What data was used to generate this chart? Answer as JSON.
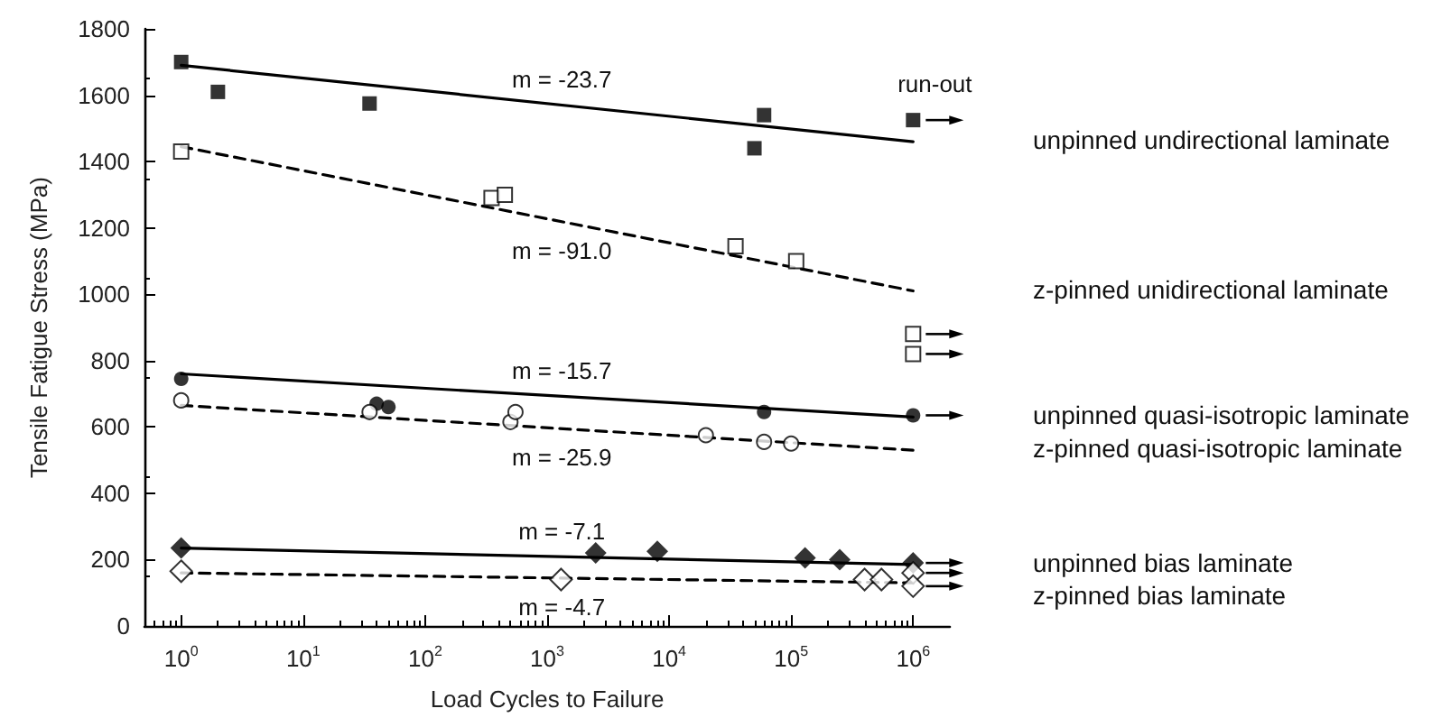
{
  "chart_data": {
    "type": "scatter",
    "xlabel": "Load Cycles to Failure",
    "ylabel": "Tensile Fatigue Stress (MPa)",
    "log": "x",
    "grid": false,
    "legend": "right",
    "xlim": [
      0.5,
      2000000
    ],
    "xticks": [
      {
        "value": 1,
        "label": "10$^{0}$"
      },
      {
        "value": 10,
        "label": "10$^{1}$"
      },
      {
        "value": 100,
        "label": "10$^{2}$"
      },
      {
        "value": 1000,
        "label": "10$^{3}$"
      },
      {
        "value": 10000,
        "label": "10$^{4}$"
      },
      {
        "value": 100000,
        "label": "10$^{5}$"
      },
      {
        "value": 1000000,
        "label": "10$^{6}$"
      }
    ],
    "ylim": [
      0,
      1800
    ],
    "yticks": [
      0,
      200,
      400,
      600,
      800,
      1000,
      1200,
      1400,
      1600,
      1800
    ],
    "series": [
      {
        "name": "unpinned undirectional laminate",
        "marker": "square",
        "color": "#000000",
        "x": [
          1,
          2,
          35,
          50000,
          60000,
          1000000
        ],
        "values": [
          1700,
          1610,
          1575,
          1440,
          1540,
          1525
        ]
      },
      {
        "type": "line",
        "marker": "none",
        "line_style": "solid",
        "color": "#000000",
        "x": [
          1,
          1000000
        ],
        "values": [
          1690,
          1460
        ]
      },
      {
        "name": "z-pinned unidirectional laminate",
        "marker": "square",
        "color": "#ffffff",
        "x": [
          1,
          350,
          450,
          35000,
          110000,
          1000000,
          1000000
        ],
        "values": [
          1430,
          1290,
          1300,
          1145,
          1100,
          880,
          820
        ]
      },
      {
        "type": "line",
        "marker": "none",
        "line_style": "dashed",
        "color": "#000000",
        "x": [
          1,
          1000000
        ],
        "values": [
          1445,
          1010
        ]
      },
      {
        "name": "unpinned quasi-isotropic laminate",
        "marker": "circle",
        "color": "#000000",
        "x": [
          1,
          40,
          50,
          60000,
          1000000
        ],
        "values": [
          745,
          670,
          660,
          645,
          635
        ]
      },
      {
        "type": "line",
        "marker": "none",
        "line_style": "solid",
        "color": "#000000",
        "x": [
          1,
          1000000
        ],
        "values": [
          760,
          630
        ]
      },
      {
        "name": "z-pinned quasi-isotropic laminate",
        "marker": "circle",
        "color": "#ffffff",
        "x": [
          1,
          35,
          500,
          550,
          20000,
          60000,
          100000
        ],
        "values": [
          680,
          645,
          615,
          645,
          575,
          555,
          550
        ]
      },
      {
        "type": "line",
        "marker": "none",
        "line_style": "dashed",
        "color": "#000000",
        "x": [
          1,
          1000000
        ],
        "values": [
          665,
          530
        ]
      },
      {
        "name": "unpinned bias laminate",
        "marker": "diamond",
        "color": "#000000",
        "x": [
          1,
          2500,
          8000,
          130000,
          250000,
          1000000
        ],
        "values": [
          235,
          220,
          225,
          205,
          200,
          190
        ]
      },
      {
        "type": "line",
        "marker": "none",
        "line_style": "solid",
        "color": "#000000",
        "x": [
          1,
          1000000
        ],
        "values": [
          235,
          185
        ]
      },
      {
        "name": "z-pinned bias laminate",
        "marker": "diamond",
        "color": "#ffffff",
        "x": [
          1,
          1300,
          400000,
          550000,
          1000000,
          1000000
        ],
        "values": [
          165,
          140,
          140,
          140,
          160,
          120
        ]
      },
      {
        "type": "line",
        "marker": "none",
        "line_style": "dashed",
        "color": "#000000",
        "x": [
          1,
          1000000
        ],
        "values": [
          160,
          130
        ]
      }
    ],
    "annotations": [
      "m = -23.7",
      "m = -91.0",
      "m = -15.7",
      "m = -25.9",
      "m = -7.1",
      "m = -4.7",
      "run-out"
    ]
  }
}
